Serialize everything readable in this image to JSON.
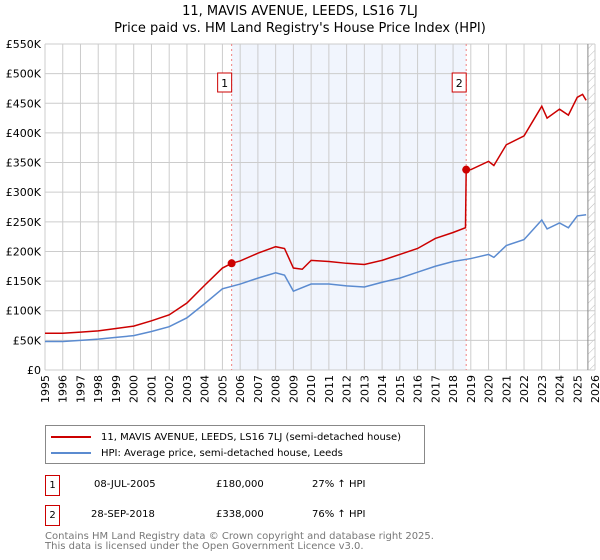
{
  "chart_data": {
    "type": "line",
    "title": "11, MAVIS AVENUE, LEEDS, LS16 7LJ",
    "subtitle": "Price paid vs. HM Land Registry's House Price Index (HPI)",
    "xlim": [
      1995,
      2026
    ],
    "ylim": [
      0,
      550000
    ],
    "x_ticks": [
      "1995",
      "1996",
      "1997",
      "1998",
      "1999",
      "2000",
      "2001",
      "2002",
      "2003",
      "2004",
      "2005",
      "2006",
      "2007",
      "2008",
      "2009",
      "2010",
      "2011",
      "2012",
      "2013",
      "2014",
      "2015",
      "2016",
      "2017",
      "2018",
      "2019",
      "2020",
      "2021",
      "2022",
      "2023",
      "2024",
      "2025",
      "2026"
    ],
    "y_ticks": [
      {
        "v": 0,
        "l": "£0"
      },
      {
        "v": 50000,
        "l": "£50K"
      },
      {
        "v": 100000,
        "l": "£100K"
      },
      {
        "v": 150000,
        "l": "£150K"
      },
      {
        "v": 200000,
        "l": "£200K"
      },
      {
        "v": 250000,
        "l": "£250K"
      },
      {
        "v": 300000,
        "l": "£300K"
      },
      {
        "v": 350000,
        "l": "£350K"
      },
      {
        "v": 400000,
        "l": "£400K"
      },
      {
        "v": 450000,
        "l": "£450K"
      },
      {
        "v": 500000,
        "l": "£500K"
      },
      {
        "v": 550000,
        "l": "£550K"
      }
    ],
    "grid": true,
    "shaded_range": [
      2005.52,
      2018.74
    ],
    "forecast_hatch_from": 2025.6,
    "series": [
      {
        "name": "11, MAVIS AVENUE, LEEDS, LS16 7LJ (semi-detached house)",
        "color": "#cc0000",
        "x": [
          1995,
          1996,
          1997,
          1998,
          1999,
          2000,
          2001,
          2002,
          2003,
          2004,
          2005,
          2005.52,
          2006,
          2007,
          2008,
          2008.5,
          2009,
          2009.5,
          2010,
          2011,
          2012,
          2013,
          2014,
          2015,
          2016,
          2017,
          2018,
          2018.7,
          2018.74,
          2019,
          2020,
          2020.3,
          2021,
          2022,
          2022.5,
          2023,
          2023.3,
          2024,
          2024.5,
          2025,
          2025.3,
          2025.5
        ],
        "y": [
          62000,
          62000,
          64000,
          66000,
          70000,
          74000,
          83000,
          93000,
          113000,
          143000,
          172000,
          180000,
          184000,
          197000,
          208000,
          205000,
          172000,
          170000,
          185000,
          183000,
          180000,
          178000,
          185000,
          195000,
          205000,
          222000,
          232000,
          240000,
          338000,
          338000,
          352000,
          345000,
          380000,
          395000,
          420000,
          445000,
          425000,
          440000,
          430000,
          460000,
          465000,
          455000
        ]
      },
      {
        "name": "HPI: Average price, semi-detached house, Leeds",
        "color": "#5b8bd0",
        "x": [
          1995,
          1996,
          1997,
          1998,
          1999,
          2000,
          2001,
          2002,
          2003,
          2004,
          2005,
          2006,
          2007,
          2008,
          2008.5,
          2009,
          2010,
          2011,
          2012,
          2013,
          2014,
          2015,
          2016,
          2017,
          2018,
          2019,
          2020,
          2020.3,
          2021,
          2022,
          2023,
          2023.3,
          2024,
          2024.5,
          2025,
          2025.5
        ],
        "y": [
          48000,
          48000,
          50000,
          52000,
          55000,
          58000,
          65000,
          73000,
          88000,
          112000,
          137000,
          145000,
          155000,
          164000,
          160000,
          133000,
          145000,
          145000,
          142000,
          140000,
          148000,
          155000,
          165000,
          175000,
          183000,
          188000,
          195000,
          190000,
          210000,
          220000,
          253000,
          238000,
          248000,
          240000,
          260000,
          262000
        ]
      }
    ],
    "annotations": [
      {
        "label": "1",
        "x": 2005.52,
        "y": 180000
      },
      {
        "label": "2",
        "x": 2018.74,
        "y": 338000
      }
    ]
  },
  "legend": {
    "red": "11, MAVIS AVENUE, LEEDS, LS16 7LJ (semi-detached house)",
    "blue": "HPI: Average price, semi-detached house, Leeds"
  },
  "sales": [
    {
      "num": "1",
      "date": "08-JUL-2005",
      "price": "£180,000",
      "hpi": "27% ↑ HPI"
    },
    {
      "num": "2",
      "date": "28-SEP-2018",
      "price": "£338,000",
      "hpi": "76% ↑ HPI"
    }
  ],
  "footer": {
    "line1": "Contains HM Land Registry data © Crown copyright and database right 2025.",
    "line2": "This data is licensed under the Open Government Licence v3.0."
  }
}
